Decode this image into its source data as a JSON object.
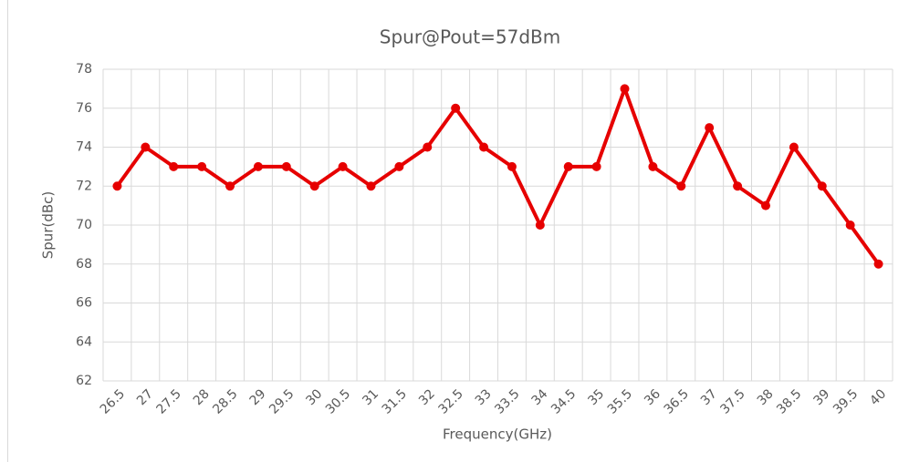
{
  "chart_data": {
    "type": "line",
    "title": "Spur@Pout=57dBm",
    "x_label": "Frequency(GHz)",
    "y_label": "Spur(dBc)",
    "categories": [
      "26.5",
      "27",
      "27.5",
      "28",
      "28.5",
      "29",
      "29.5",
      "30",
      "30.5",
      "31",
      "31.5",
      "32",
      "32.5",
      "33",
      "33.5",
      "34",
      "34.5",
      "35",
      "35.5",
      "36",
      "36.5",
      "37",
      "37.5",
      "38",
      "38.5",
      "39",
      "39.5",
      "40"
    ],
    "values": [
      72,
      74,
      73,
      73,
      72,
      73,
      73,
      72,
      73,
      72,
      73,
      74,
      76,
      74,
      73,
      70,
      73,
      73,
      77,
      73,
      72,
      75,
      72,
      71,
      74,
      72,
      70,
      68
    ],
    "color": "#e60000",
    "ylim": [
      62,
      78
    ],
    "yticks": [
      62,
      64,
      66,
      68,
      70,
      72,
      74,
      76,
      78
    ],
    "grid": true
  }
}
